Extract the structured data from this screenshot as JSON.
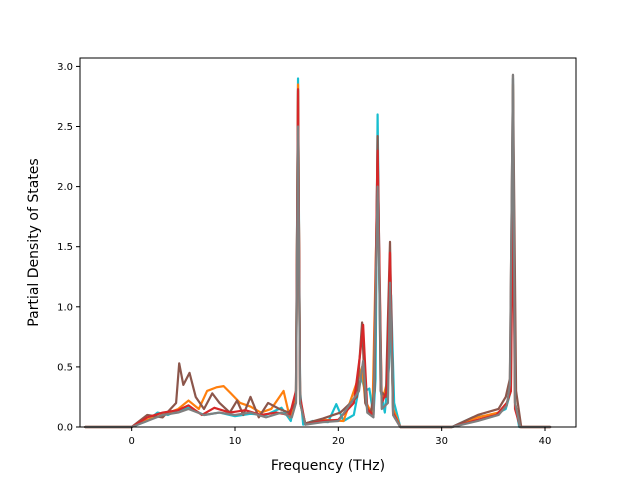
{
  "chart_data": {
    "type": "line",
    "title": "",
    "xlabel": "Frequency (THz)",
    "ylabel": "Partial Density of States",
    "xlim": [
      -5,
      43
    ],
    "ylim": [
      0,
      3.07
    ],
    "xticks": [
      0,
      10,
      20,
      30,
      40
    ],
    "yticks": [
      0.0,
      0.5,
      1.0,
      1.5,
      2.0,
      2.5,
      3.0
    ],
    "xtick_labels": [
      "0",
      "10",
      "20",
      "30",
      "40"
    ],
    "ytick_labels": [
      "0.0",
      "0.5",
      "1.0",
      "1.5",
      "2.0",
      "2.5",
      "3.0"
    ],
    "grid": false,
    "legend": "none",
    "series": [
      {
        "color": "#17becf",
        "x": [
          -4.5,
          0,
          1.5,
          2.5,
          3.5,
          4.5,
          5.5,
          7,
          8.5,
          10,
          11.5,
          13,
          14.5,
          15.4,
          15.9,
          16.1,
          16.3,
          16.6,
          17.5,
          19,
          19.8,
          20.5,
          21.5,
          22.2,
          22.6,
          23.0,
          23.4,
          23.6,
          23.8,
          24.1,
          24.5,
          24.9,
          25.1,
          25.4,
          26,
          28,
          31,
          33,
          35,
          36.2,
          36.7,
          36.9,
          37.1,
          37.5,
          40.5
        ],
        "y": [
          0,
          0,
          0.05,
          0.12,
          0.1,
          0.14,
          0.16,
          0.1,
          0.12,
          0.09,
          0.11,
          0.1,
          0.16,
          0.05,
          0.3,
          2.9,
          0.3,
          0.02,
          0.05,
          0.04,
          0.19,
          0.05,
          0.1,
          0.42,
          0.3,
          0.32,
          0.1,
          0.4,
          2.6,
          0.3,
          0.12,
          0.5,
          1.1,
          0.2,
          0,
          0,
          0,
          0.08,
          0.1,
          0.15,
          0.3,
          2.9,
          0.2,
          0,
          0
        ]
      },
      {
        "color": "#ff7f0e",
        "x": [
          -4.5,
          0,
          1.5,
          3,
          4.5,
          5.5,
          6.5,
          7.3,
          8.2,
          8.9,
          9.6,
          10.5,
          11.5,
          12.5,
          13.5,
          14.7,
          15.3,
          15.9,
          16.1,
          16.3,
          16.8,
          18.5,
          20.5,
          22.3,
          22.6,
          23.3,
          23.8,
          24.2,
          24.8,
          25.0,
          25.3,
          26,
          31,
          33.5,
          35.5,
          36.3,
          36.7,
          36.9,
          37.1,
          37.6,
          40.5
        ],
        "y": [
          0,
          0,
          0.06,
          0.1,
          0.15,
          0.22,
          0.15,
          0.3,
          0.33,
          0.34,
          0.28,
          0.2,
          0.17,
          0.12,
          0.15,
          0.3,
          0.08,
          0.25,
          2.85,
          0.2,
          0.03,
          0.06,
          0.05,
          0.5,
          0.22,
          0.1,
          2.1,
          0.2,
          0.4,
          1.3,
          0.15,
          0,
          0,
          0.08,
          0.12,
          0.2,
          0.3,
          2.85,
          0.2,
          0,
          0
        ]
      },
      {
        "color": "#8c564b",
        "x": [
          -4.5,
          0,
          1.5,
          3,
          4.3,
          4.6,
          5.0,
          5.6,
          6.2,
          7.0,
          7.8,
          8.5,
          9.5,
          10.2,
          10.8,
          11.5,
          12.3,
          13.2,
          14.3,
          15.2,
          15.9,
          16.1,
          16.3,
          16.8,
          18.5,
          20.2,
          21.8,
          22.3,
          22.6,
          23.1,
          23.5,
          23.8,
          24.1,
          24.6,
          25.0,
          25.3,
          26,
          31,
          33.5,
          35.5,
          36.2,
          36.6,
          36.9,
          37.2,
          37.7,
          40.5
        ],
        "y": [
          0,
          0,
          0.1,
          0.08,
          0.2,
          0.53,
          0.35,
          0.45,
          0.25,
          0.15,
          0.28,
          0.2,
          0.12,
          0.22,
          0.1,
          0.25,
          0.08,
          0.2,
          0.15,
          0.12,
          0.2,
          2.8,
          0.2,
          0.03,
          0.07,
          0.12,
          0.25,
          0.87,
          0.2,
          0.1,
          0.3,
          2.42,
          0.3,
          0.25,
          1.54,
          0.1,
          0,
          0,
          0.1,
          0.15,
          0.25,
          0.4,
          2.93,
          0.3,
          0,
          0
        ]
      },
      {
        "color": "#d62728",
        "x": [
          -4.5,
          0,
          1.5,
          3,
          4.5,
          5.5,
          6.8,
          8,
          9.5,
          11,
          12.5,
          14,
          15.3,
          15.9,
          16.1,
          16.3,
          16.8,
          18.5,
          20,
          21.5,
          22.1,
          22.4,
          22.8,
          23.4,
          23.8,
          24.2,
          24.7,
          25.0,
          25.3,
          26,
          31,
          33.5,
          35.3,
          36.3,
          36.7,
          36.9,
          37.1,
          37.6,
          40.5
        ],
        "y": [
          0,
          0,
          0.08,
          0.12,
          0.14,
          0.18,
          0.1,
          0.16,
          0.12,
          0.14,
          0.1,
          0.12,
          0.1,
          0.3,
          2.81,
          0.25,
          0.02,
          0.05,
          0.06,
          0.2,
          0.6,
          0.85,
          0.15,
          0.1,
          2.3,
          0.2,
          0.3,
          1.45,
          0.12,
          0,
          0,
          0.06,
          0.1,
          0.2,
          0.3,
          1.9,
          0.15,
          0,
          0
        ]
      },
      {
        "color": "#7f7f7f",
        "x": [
          -4.5,
          0,
          1.5,
          3,
          4.5,
          5.5,
          7,
          8.5,
          10,
          11.5,
          13,
          14.5,
          15.5,
          15.9,
          16.1,
          16.3,
          16.8,
          18.5,
          20,
          22,
          22.4,
          22.8,
          23.4,
          23.8,
          24.2,
          24.8,
          25.0,
          25.3,
          26,
          31,
          33.5,
          35.5,
          36.3,
          36.6,
          36.9,
          37.1,
          37.6,
          40.5
        ],
        "y": [
          0,
          0,
          0.05,
          0.1,
          0.12,
          0.15,
          0.1,
          0.12,
          0.1,
          0.12,
          0.08,
          0.12,
          0.08,
          0.2,
          2.5,
          0.2,
          0.02,
          0.04,
          0.05,
          0.3,
          0.55,
          0.12,
          0.08,
          2.0,
          0.15,
          0.2,
          1.2,
          0.1,
          0,
          0,
          0.05,
          0.1,
          0.18,
          0.35,
          2.93,
          0.2,
          0,
          0
        ]
      }
    ]
  }
}
